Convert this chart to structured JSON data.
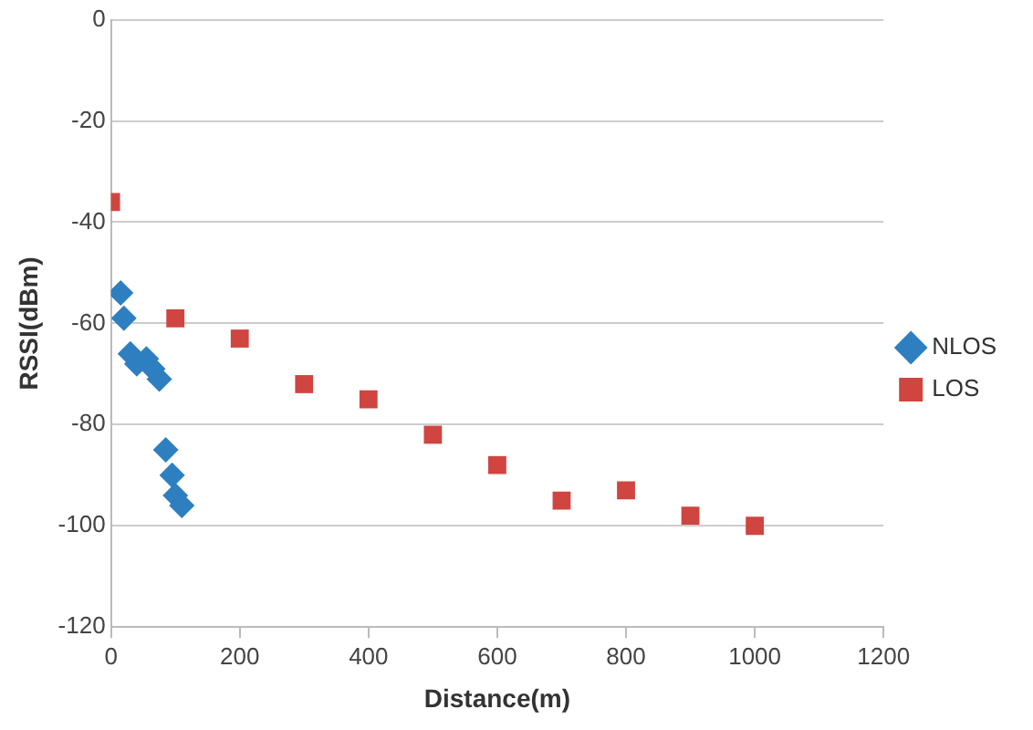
{
  "chart_data": {
    "type": "scatter",
    "xlabel": "Distance(m)",
    "ylabel": "RSSI(dBm)",
    "series": [
      {
        "name": "NLOS",
        "color": "#2e7fc0",
        "marker": "diamond",
        "x": [
          15,
          20,
          30,
          40,
          55,
          65,
          75,
          85,
          95,
          100,
          110
        ],
        "values": [
          -54,
          -59,
          -66,
          -68,
          -67,
          -69,
          -71,
          -85,
          -90,
          -94,
          -96
        ]
      },
      {
        "name": "LOS",
        "color": "#d04540",
        "marker": "square",
        "x": [
          0,
          100,
          200,
          300,
          400,
          500,
          600,
          700,
          800,
          900,
          1000
        ],
        "values": [
          -36,
          -59,
          -63,
          -72,
          -75,
          -82,
          -88,
          -95,
          -93,
          -98,
          -100
        ]
      }
    ],
    "xlim": [
      0,
      1200
    ],
    "xticks": [
      0,
      200,
      400,
      600,
      800,
      1000,
      1200
    ],
    "ylim": [
      -120,
      0
    ],
    "yticks": [
      0,
      -20,
      -40,
      -60,
      -80,
      -100,
      -120
    ],
    "grid": "y",
    "legend": "right"
  }
}
